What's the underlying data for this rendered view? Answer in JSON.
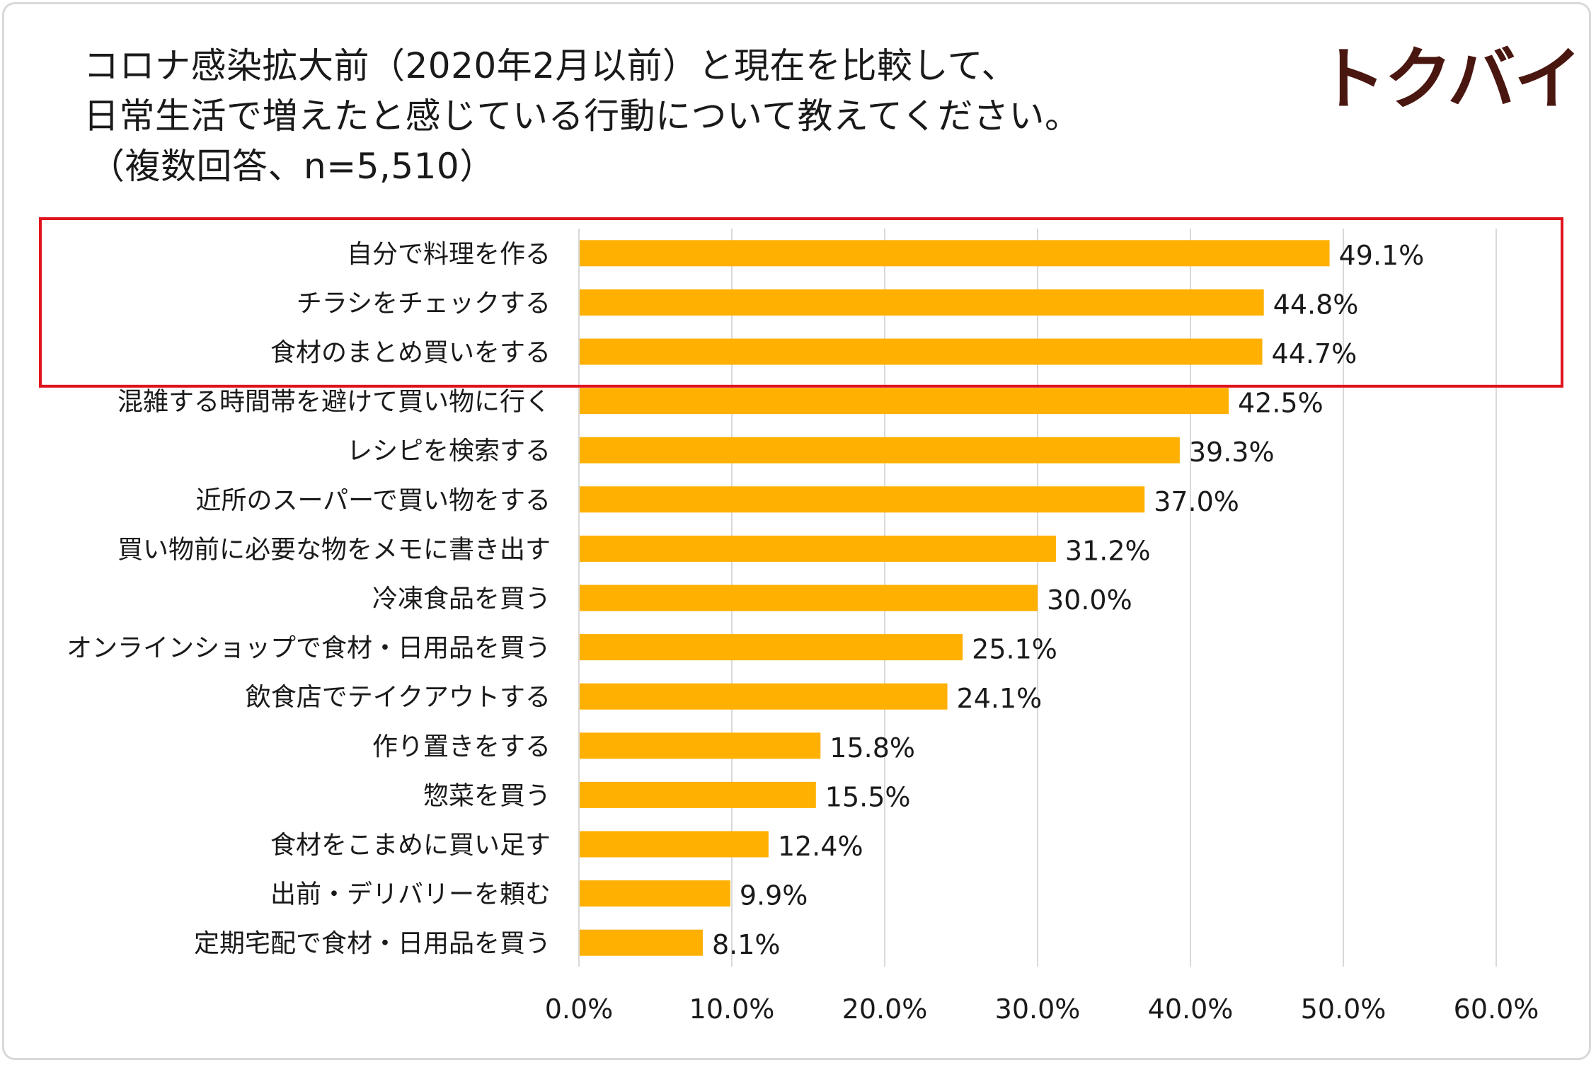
{
  "title": {
    "line1": "コロナ感染拡大前（2020年2月以前）と現在を比較して、",
    "line2": "日常生活で増えたと感じている行動について教えてください。",
    "line3": "（複数回答、n=5,510）"
  },
  "brand": {
    "logo_text": "トクバイ"
  },
  "highlight": {
    "color": "#e0141e",
    "categories": [
      "自分で料理を作る",
      "チラシをチェックする",
      "食材のまとめ買いをする"
    ]
  },
  "colors": {
    "bar": "#ffb000",
    "grid": "#d9d9d9",
    "text": "#1a1a1a",
    "brand": "#4a1710"
  },
  "chart_data": {
    "type": "bar",
    "orientation": "horizontal",
    "title": "コロナ感染拡大前（2020年2月以前）と現在を比較して、日常生活で増えたと感じている行動について教えてください。（複数回答、n=5,510）",
    "xlabel": "",
    "ylabel": "",
    "xlim": [
      0,
      60
    ],
    "grid": true,
    "ticks": [
      0,
      10,
      20,
      30,
      40,
      50,
      60
    ],
    "tick_labels": [
      "0.0%",
      "10.0%",
      "20.0%",
      "30.0%",
      "40.0%",
      "50.0%",
      "60.0%"
    ],
    "categories": [
      "自分で料理を作る",
      "チラシをチェックする",
      "食材のまとめ買いをする",
      "混雑する時間帯を避けて買い物に行く",
      "レシピを検索する",
      "近所のスーパーで買い物をする",
      "買い物前に必要な物をメモに書き出す",
      "冷凍食品を買う",
      "オンラインショップで食材・日用品を買う",
      "飲食店でテイクアウトする",
      "作り置きをする",
      "惣菜を買う",
      "食材をこまめに買い足す",
      "出前・デリバリーを頼む",
      "定期宅配で食材・日用品を買う"
    ],
    "values": [
      49.1,
      44.8,
      44.7,
      42.5,
      39.3,
      37.0,
      31.2,
      30.0,
      25.1,
      24.1,
      15.8,
      15.5,
      12.4,
      9.9,
      8.1
    ],
    "value_labels": [
      "49.1%",
      "44.8%",
      "44.7%",
      "42.5%",
      "39.3%",
      "37.0%",
      "31.2%",
      "30.0%",
      "25.1%",
      "24.1%",
      "15.8%",
      "15.5%",
      "12.4%",
      "9.9%",
      "8.1%"
    ]
  }
}
